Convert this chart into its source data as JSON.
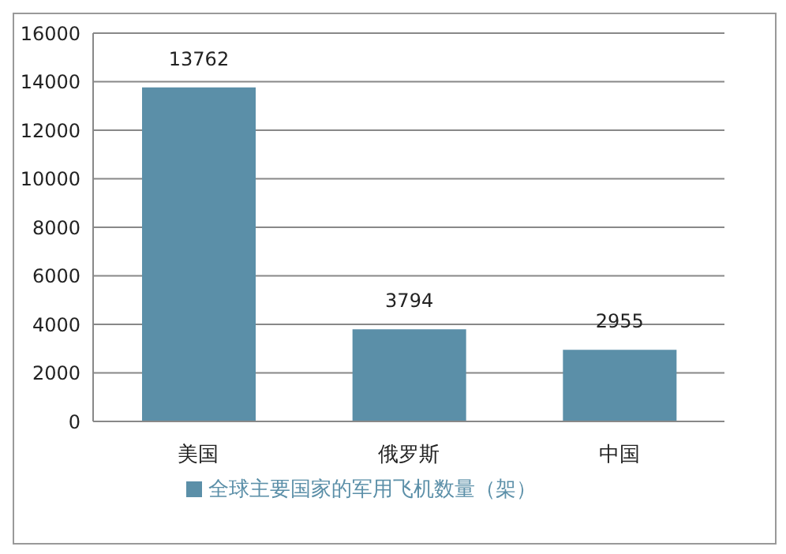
{
  "chart_data": {
    "type": "bar",
    "categories": [
      "美国",
      "俄罗斯",
      "中国"
    ],
    "series": [
      {
        "name": "全球主要国家的军用飞机数量（架）",
        "color": "#5b8fa8",
        "values": [
          13762,
          3794,
          2955
        ]
      }
    ],
    "ylim": [
      0,
      16000
    ],
    "yticks": [
      0,
      2000,
      4000,
      6000,
      8000,
      10000,
      12000,
      14000,
      16000
    ],
    "grid": "y",
    "legend": "bottom",
    "data_labels": true
  }
}
